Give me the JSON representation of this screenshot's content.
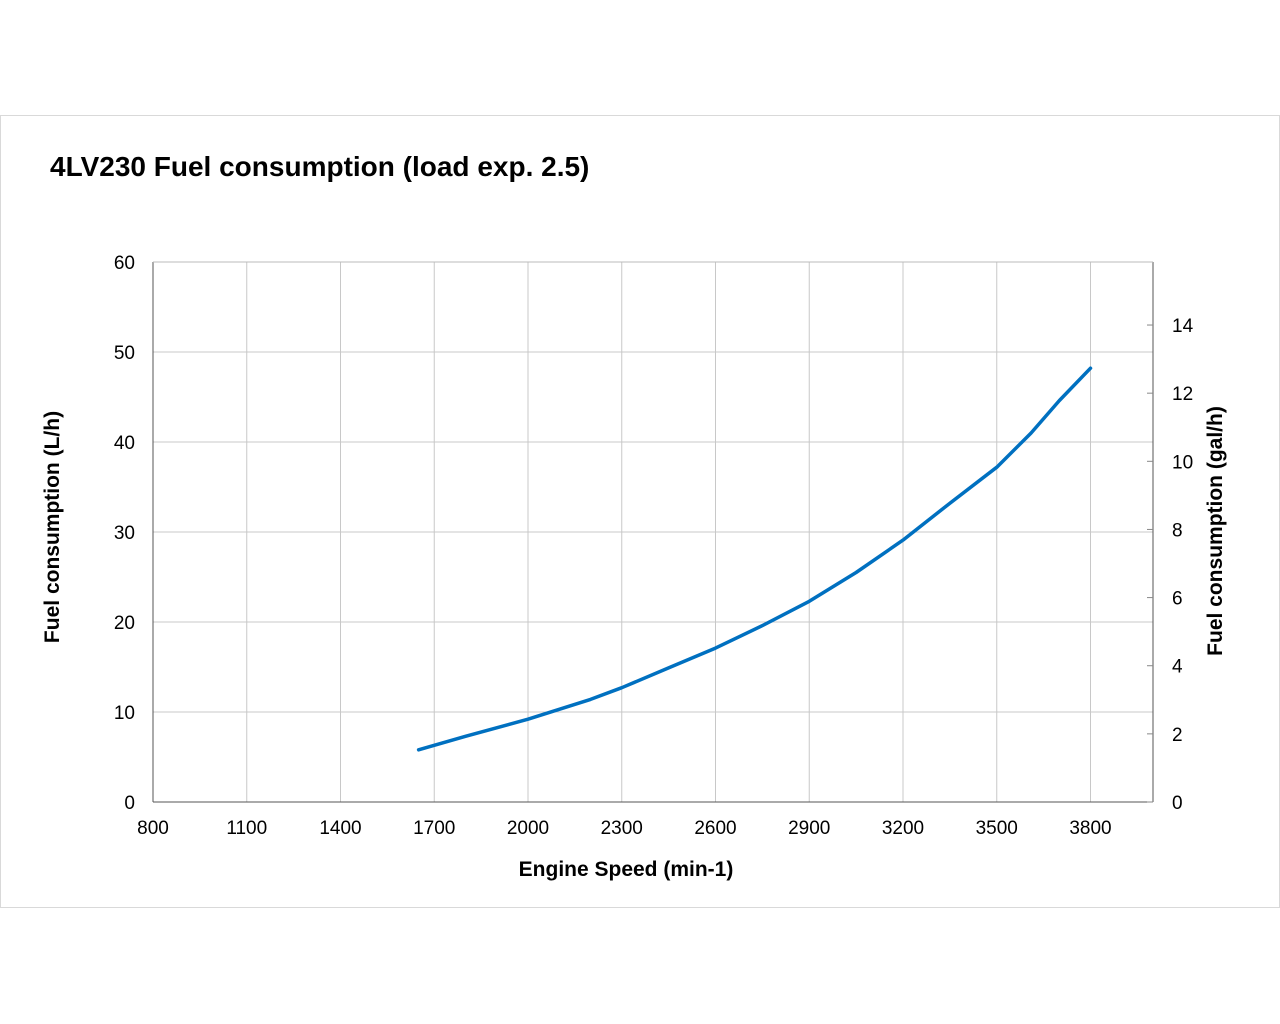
{
  "chart_data": {
    "type": "line",
    "title": "4LV230 Fuel consumption (load exp. 2.5)",
    "xlabel": "Engine Speed (min-1)",
    "ylabel": "Fuel consumption (L/h)",
    "y2label": "Fuel consumption (gal/h)",
    "xlim": [
      800,
      4000
    ],
    "ylim": [
      0,
      60
    ],
    "y2lim": [
      0,
      15.85
    ],
    "xticks": [
      800,
      1100,
      1400,
      1700,
      2000,
      2300,
      2600,
      2900,
      3200,
      3500,
      3800
    ],
    "yticks": [
      0,
      10,
      20,
      30,
      40,
      50,
      60
    ],
    "y2ticks": [
      0,
      2,
      4,
      6,
      8,
      10,
      12,
      14
    ],
    "grid": true,
    "series": [
      {
        "name": "Fuel consumption",
        "color": "#0070C0",
        "x": [
          1650,
          1800,
          2000,
          2200,
          2300,
          2450,
          2600,
          2750,
          2900,
          3050,
          3200,
          3350,
          3500,
          3610,
          3700,
          3800
        ],
        "y": [
          5.8,
          7.3,
          9.2,
          11.4,
          12.7,
          14.9,
          17.1,
          19.6,
          22.3,
          25.5,
          29.1,
          33.2,
          37.2,
          41.0,
          44.6,
          48.2
        ]
      }
    ]
  }
}
